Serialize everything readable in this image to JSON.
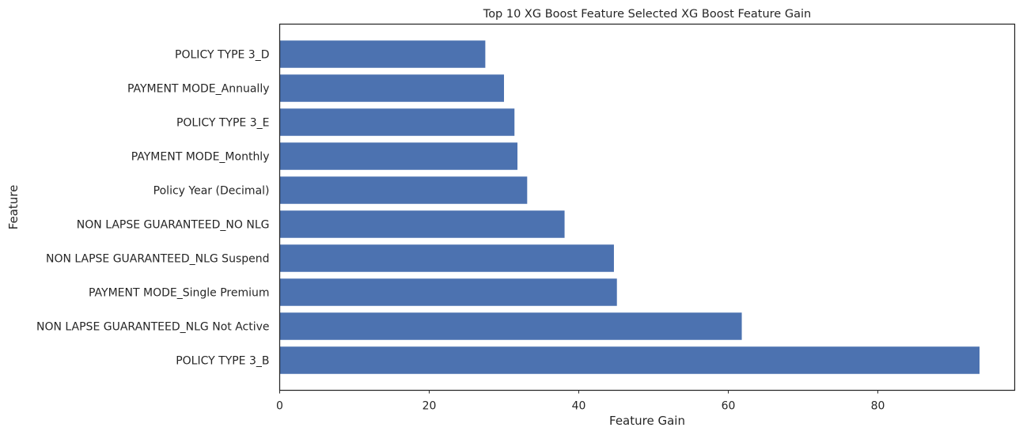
{
  "chart_data": {
    "type": "bar",
    "orientation": "horizontal",
    "title": "Top 10 XG Boost Feature Selected XG Boost Feature Gain",
    "xlabel": "Feature Gain",
    "ylabel": "Feature",
    "xlim": [
      0,
      98.3
    ],
    "xticks": [
      0,
      20,
      40,
      60,
      80
    ],
    "grid": false,
    "bar_color": "#4c72b0",
    "categories": [
      "POLICY TYPE 3_D",
      "PAYMENT MODE_Annually",
      "POLICY TYPE 3_E",
      "PAYMENT MODE_Monthly",
      "Policy Year (Decimal)",
      "NON LAPSE GUARANTEED_NO NLG",
      "NON LAPSE GUARANTEED_NLG Suspend",
      "PAYMENT MODE_Single Premium",
      "NON LAPSE GUARANTEED_NLG Not Active",
      "POLICY TYPE 3_B"
    ],
    "values": [
      27.5,
      30.0,
      31.4,
      31.8,
      33.1,
      38.1,
      44.7,
      45.1,
      61.8,
      93.6
    ]
  }
}
